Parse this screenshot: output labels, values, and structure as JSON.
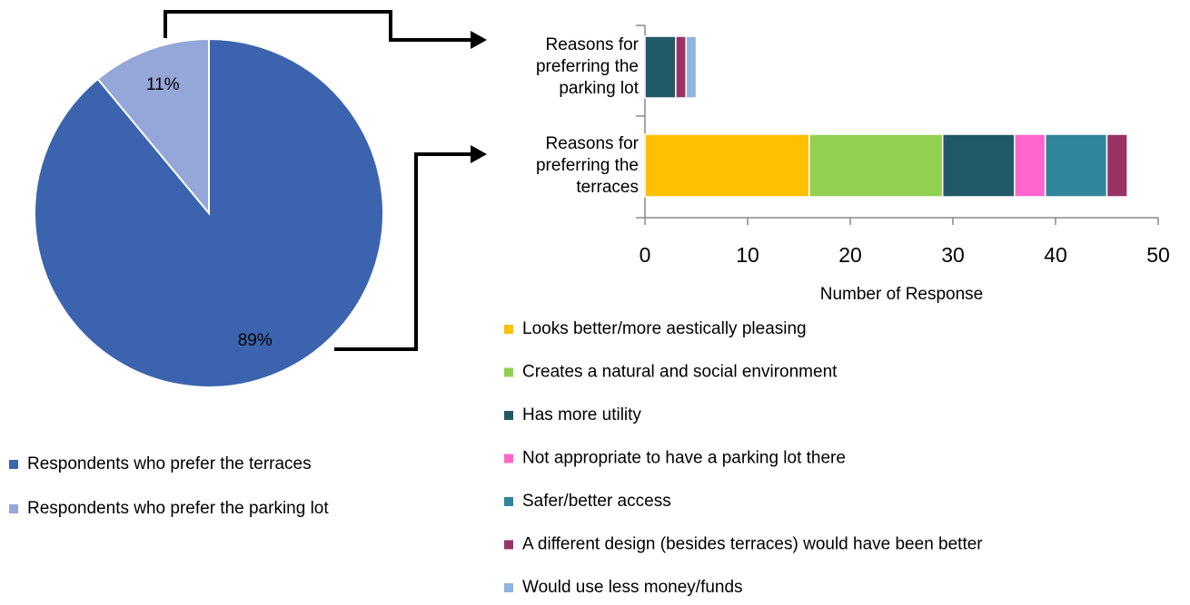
{
  "chart_data": [
    {
      "type": "pie",
      "series": [
        {
          "name": "Respondents who prefer the terraces",
          "color": "#3c64ae"
        },
        {
          "name": "Respondents who prefer the parking lot",
          "color": "#95a7d8"
        }
      ],
      "values": [
        89,
        11
      ],
      "value_labels": [
        "89%",
        "11%"
      ]
    },
    {
      "type": "stacked-bar-horizontal",
      "categories": [
        "Reasons for preferring the parking lot",
        "Reasons for preferring the terraces"
      ],
      "series": [
        {
          "name": "Looks better/more aestically pleasing",
          "color": "#ffc000",
          "values": [
            0,
            16
          ]
        },
        {
          "name": "Creates a natural and social environment",
          "color": "#92d050",
          "values": [
            0,
            13
          ]
        },
        {
          "name": "Has more utility",
          "color": "#215968",
          "values": [
            3,
            7
          ]
        },
        {
          "name": "Not appropriate to have a parking lot there",
          "color": "#ff66cc",
          "values": [
            0,
            3
          ]
        },
        {
          "name": "Safer/better access",
          "color": "#31859c",
          "values": [
            0,
            6
          ]
        },
        {
          "name": "A different design (besides terraces) would have been better",
          "color": "#993366",
          "values": [
            1,
            2
          ]
        },
        {
          "name": "Would use less money/funds",
          "color": "#8db4e2",
          "values": [
            1,
            0
          ]
        }
      ],
      "xlabel": "Number of Response",
      "xlim": [
        0,
        50
      ],
      "xticks": [
        0,
        10,
        20,
        30,
        40,
        50
      ]
    }
  ]
}
